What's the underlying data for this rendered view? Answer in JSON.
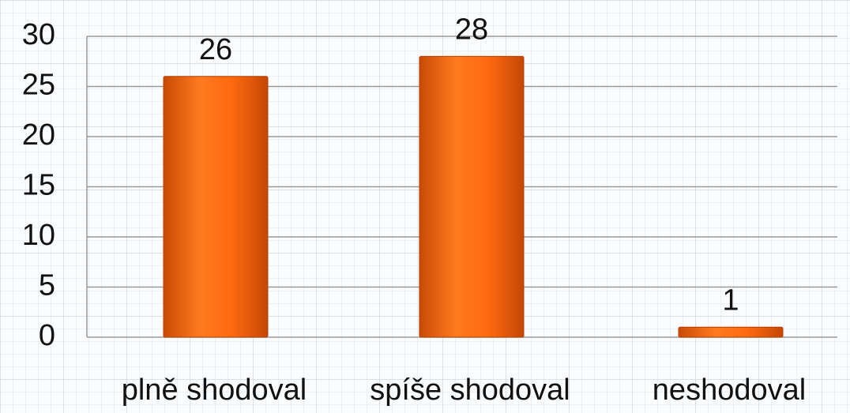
{
  "chart_data": {
    "type": "bar",
    "categories": [
      "plně shodoval",
      "spíše shodoval",
      "neshodoval"
    ],
    "values": [
      26,
      28,
      1
    ],
    "color": "#f26a10",
    "ylim": [
      0,
      30
    ],
    "yticks": [
      0,
      5,
      10,
      15,
      20,
      25,
      30
    ],
    "grid": true
  }
}
